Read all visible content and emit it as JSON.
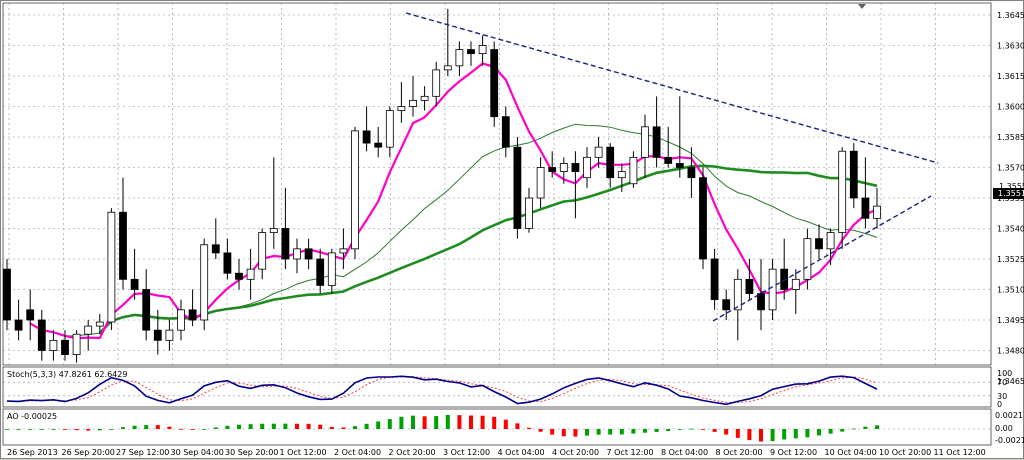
{
  "chart": {
    "price_labels": [
      "1.3645",
      "1.3630",
      "1.3615",
      "1.3600",
      "1.3585",
      "1.3570",
      "1.3555",
      "1.3540",
      "1.3525",
      "1.3510",
      "1.3495",
      "1.3480",
      "1.3465"
    ],
    "price_values": [
      1.3645,
      1.363,
      1.3615,
      1.36,
      1.3585,
      1.357,
      1.3555,
      1.354,
      1.3525,
      1.351,
      1.3495,
      1.348,
      1.3465
    ],
    "current_price_label": "1.3551",
    "current_price_value": 1.3551,
    "reference_price_label": "1.3555",
    "time_labels": [
      "26 Sep 2013",
      "26 Sep 20:00",
      "27 Sep 12:00",
      "30 Sep 04:00",
      "30 Sep 20:00",
      "1 Oct 12:00",
      "2 Oct 04:00",
      "2 Oct 20:00",
      "3 Oct 12:00",
      "4 Oct 04:00",
      "4 Oct 20:00",
      "7 Oct 12:00",
      "8 Oct 04:00",
      "8 Oct 20:00",
      "9 Oct 12:00",
      "10 Oct 04:00",
      "10 Oct 20:00",
      "11 Oct 12:00"
    ],
    "candles": [
      [
        1.352,
        1.3525,
        1.349,
        1.3495
      ],
      [
        1.3495,
        1.3505,
        1.3485,
        1.349
      ],
      [
        1.35,
        1.351,
        1.3485,
        1.3495
      ],
      [
        1.3495,
        1.35,
        1.3475,
        1.348
      ],
      [
        1.348,
        1.349,
        1.3475,
        1.3485
      ],
      [
        1.3485,
        1.349,
        1.3475,
        1.3478
      ],
      [
        1.3478,
        1.349,
        1.3474,
        1.3488
      ],
      [
        1.3488,
        1.3495,
        1.348,
        1.3492
      ],
      [
        1.3492,
        1.3498,
        1.3488,
        1.3494
      ],
      [
        1.3494,
        1.355,
        1.349,
        1.3548
      ],
      [
        1.3548,
        1.3565,
        1.351,
        1.3515
      ],
      [
        1.3515,
        1.353,
        1.3505,
        1.351
      ],
      [
        1.351,
        1.352,
        1.3485,
        1.349
      ],
      [
        1.349,
        1.35,
        1.3478,
        1.3485
      ],
      [
        1.3485,
        1.3495,
        1.348,
        1.349
      ],
      [
        1.349,
        1.3505,
        1.3485,
        1.35
      ],
      [
        1.35,
        1.351,
        1.3492,
        1.3495
      ],
      [
        1.3495,
        1.3535,
        1.349,
        1.3532
      ],
      [
        1.3532,
        1.3545,
        1.3525,
        1.3528
      ],
      [
        1.3528,
        1.3535,
        1.3515,
        1.3518
      ],
      [
        1.3518,
        1.3525,
        1.351,
        1.3515
      ],
      [
        1.3515,
        1.353,
        1.3505,
        1.352
      ],
      [
        1.352,
        1.354,
        1.3515,
        1.3538
      ],
      [
        1.3538,
        1.3575,
        1.353,
        1.354
      ],
      [
        1.354,
        1.356,
        1.352,
        1.3525
      ],
      [
        1.3525,
        1.3535,
        1.3518,
        1.353
      ],
      [
        1.353,
        1.3535,
        1.352,
        1.3525
      ],
      [
        1.3525,
        1.353,
        1.3508,
        1.3512
      ],
      [
        1.3512,
        1.353,
        1.3508,
        1.3528
      ],
      [
        1.3528,
        1.354,
        1.352,
        1.353
      ],
      [
        1.353,
        1.359,
        1.3525,
        1.3588
      ],
      [
        1.3588,
        1.36,
        1.3578,
        1.3582
      ],
      [
        1.3582,
        1.359,
        1.3575,
        1.358
      ],
      [
        1.358,
        1.36,
        1.3575,
        1.3598
      ],
      [
        1.3598,
        1.3612,
        1.3592,
        1.36
      ],
      [
        1.36,
        1.3615,
        1.3595,
        1.3603
      ],
      [
        1.3603,
        1.361,
        1.3598,
        1.3605
      ],
      [
        1.3605,
        1.3622,
        1.36,
        1.3618
      ],
      [
        1.3618,
        1.3648,
        1.3615,
        1.362
      ],
      [
        1.362,
        1.3632,
        1.3615,
        1.3628
      ],
      [
        1.3628,
        1.3632,
        1.362,
        1.3626
      ],
      [
        1.3626,
        1.3635,
        1.362,
        1.363
      ],
      [
        1.3628,
        1.3632,
        1.359,
        1.3595
      ],
      [
        1.3595,
        1.36,
        1.3575,
        1.358
      ],
      [
        1.358,
        1.3585,
        1.3535,
        1.354
      ],
      [
        1.354,
        1.356,
        1.3538,
        1.3555
      ],
      [
        1.3555,
        1.3575,
        1.355,
        1.357
      ],
      [
        1.357,
        1.3578,
        1.3565,
        1.3568
      ],
      [
        1.3568,
        1.3575,
        1.3562,
        1.3572
      ],
      [
        1.3572,
        1.3578,
        1.3545,
        1.3568
      ],
      [
        1.3565,
        1.358,
        1.356,
        1.3575
      ],
      [
        1.3575,
        1.3585,
        1.357,
        1.358
      ],
      [
        1.358,
        1.3582,
        1.356,
        1.3565
      ],
      [
        1.3565,
        1.3572,
        1.3558,
        1.3568
      ],
      [
        1.3562,
        1.3578,
        1.356,
        1.3575
      ],
      [
        1.3575,
        1.3596,
        1.3565,
        1.359
      ],
      [
        1.359,
        1.3605,
        1.357,
        1.3575
      ],
      [
        1.3575,
        1.359,
        1.357,
        1.3572
      ],
      [
        1.3572,
        1.3605,
        1.3565,
        1.357
      ],
      [
        1.357,
        1.358,
        1.3555,
        1.3565
      ],
      [
        1.3565,
        1.357,
        1.352,
        1.3525
      ],
      [
        1.3525,
        1.353,
        1.35,
        1.3505
      ],
      [
        1.3505,
        1.351,
        1.3495,
        1.35
      ],
      [
        1.35,
        1.352,
        1.3485,
        1.3515
      ],
      [
        1.3515,
        1.3525,
        1.3505,
        1.3508
      ],
      [
        1.3508,
        1.3525,
        1.349,
        1.35
      ],
      [
        1.35,
        1.3525,
        1.3495,
        1.352
      ],
      [
        1.352,
        1.3535,
        1.3505,
        1.351
      ],
      [
        1.351,
        1.352,
        1.3498,
        1.3515
      ],
      [
        1.3515,
        1.354,
        1.351,
        1.3535
      ],
      [
        1.3535,
        1.3542,
        1.3525,
        1.353
      ],
      [
        1.353,
        1.354,
        1.3522,
        1.3538
      ],
      [
        1.3538,
        1.358,
        1.353,
        1.3578
      ],
      [
        1.3578,
        1.3582,
        1.355,
        1.3555
      ],
      [
        1.3555,
        1.3575,
        1.354,
        1.3545
      ],
      [
        1.3545,
        1.356,
        1.354,
        1.3551
      ]
    ],
    "sma_fast_color": "#ff00c8",
    "sma_slow_color": "#1e8c1e",
    "sma_mid_color": "#2a7a2a",
    "trend_color": "#1a237e",
    "candle_stroke": "#000000",
    "bull_fill": "#ffffff",
    "bear_fill": "#000000"
  },
  "stoch": {
    "title": "Stoch(5,3,3) 47.8261 62.6429",
    "level_labels": [
      "100",
      "70",
      "30",
      "0"
    ],
    "main_color": "#00008b",
    "signal_color": "#ff4040"
  },
  "ao": {
    "title": "AO -0.00025",
    "level_labels": [
      "0.0021",
      "0.00",
      "-0.0021"
    ],
    "up_color": "#00a000",
    "down_color": "#ff0000"
  }
}
